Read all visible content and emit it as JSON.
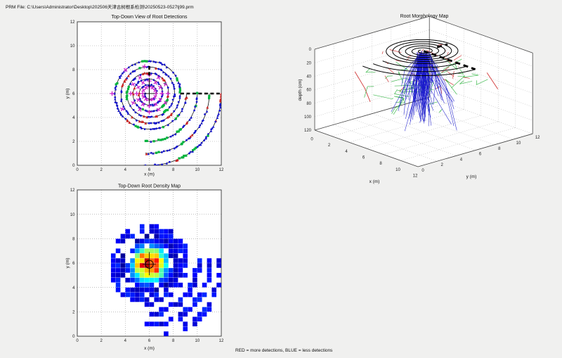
{
  "window": {
    "background": "#f0f0ef"
  },
  "header": {
    "prm_file_label": "PRM File: C:\\Users\\Administrator\\Desktop\\202506天津古树根系检测\\20250523-0527tj99.prm"
  },
  "footer": {
    "legend": "RED = more detections, BLUE = less detections"
  },
  "colors": {
    "marker_blue": "#1414cc",
    "marker_green": "#00b33c",
    "marker_red": "#cc2222",
    "marker_magenta": "#cc22cc",
    "root_blue": "#1a1acc",
    "root_green": "#2ab23c",
    "root_red": "#cc2222",
    "axis": "#333333",
    "grid": "#9a9a9a"
  },
  "chart_data": [
    {
      "id": "topdown_detections",
      "type": "scatter",
      "title": "Top-Down View of Root Detections",
      "xlabel": "x (m)",
      "ylabel": "y (m)",
      "xlim": [
        0,
        12
      ],
      "ylim": [
        0,
        12
      ],
      "xticks": [
        0,
        2,
        4,
        6,
        8,
        10,
        12
      ],
      "yticks": [
        0,
        2,
        4,
        6,
        8,
        10,
        12
      ],
      "grid": "dotted",
      "center": [
        6,
        6
      ],
      "spiral": {
        "r_start": 0.35,
        "r_per_turn": 0.5,
        "turns": 5.5,
        "start_angle_deg": 180
      },
      "outer_arcs": {
        "radii": [
          4,
          5,
          6
        ],
        "angle_start_deg": 0,
        "angle_end_deg": -95
      },
      "marker_spacing_m": 0.13,
      "marker_weights": {
        "blue": 0.62,
        "green": 0.18,
        "red": 0.2
      },
      "magenta_spokes": {
        "angles_deg": [
          0,
          30,
          60,
          90,
          120,
          150,
          180,
          210,
          240,
          270,
          300,
          330
        ],
        "radii": [
          0.55,
          1.05,
          1.55
        ]
      },
      "magenta_outer": [
        [
          135,
          2.8
        ],
        [
          180,
          3.1
        ],
        [
          210,
          2.6
        ],
        [
          100,
          2.3
        ]
      ],
      "dashes": {
        "vertical": {
          "x": 6,
          "y1": 7.5,
          "y2": 8.5
        },
        "horizontal": {
          "y": 6,
          "x1": 8.6,
          "x2": 12
        }
      },
      "seed": 7
    },
    {
      "id": "root_morphology",
      "type": "line3d",
      "title": "Root Morphology Map",
      "xlabel": "x (m)",
      "ylabel": "y (m)",
      "zlabel": "depth (cm)",
      "xlim": [
        0,
        12
      ],
      "ylim": [
        0,
        12
      ],
      "depth_lim": [
        0,
        120
      ],
      "xticks": [
        0,
        2,
        4,
        6,
        8,
        10,
        12
      ],
      "yticks": [
        0,
        2,
        4,
        6,
        8,
        10,
        12
      ],
      "depth_ticks": [
        0,
        20,
        40,
        60,
        80,
        100,
        120
      ],
      "surface_pattern": {
        "center": [
          6,
          6
        ],
        "spiral": {
          "r_start": 0.35,
          "r_per_turn": 0.5,
          "turns": 5.5,
          "start_angle_deg": 180
        },
        "outer_arcs": {
          "radii": [
            4,
            5,
            6
          ],
          "angle_start_deg": 0,
          "angle_end_deg": -95
        },
        "bold_dash_east": {
          "from": [
            6,
            6
          ],
          "to": [
            12,
            6
          ]
        },
        "bold_dash_north": {
          "from": [
            6,
            7.4
          ],
          "to": [
            6,
            8.5
          ]
        }
      },
      "roots": {
        "blue_count": 120,
        "green_count": 34,
        "red_count": 42,
        "blue_depth_range": [
          30,
          115
        ],
        "green_depth_range": [
          25,
          72
        ],
        "red_depth_range": [
          4,
          45
        ],
        "spread_m": 3.2
      },
      "seed": 13
    },
    {
      "id": "root_density",
      "type": "heatmap",
      "title": "Top-Down Root Density Map",
      "xlabel": "x (m)",
      "ylabel": "y (m)",
      "xlim": [
        0,
        12
      ],
      "ylim": [
        0,
        12
      ],
      "xticks": [
        0,
        2,
        4,
        6,
        8,
        10,
        12
      ],
      "yticks": [
        0,
        2,
        4,
        6,
        8,
        10,
        12
      ],
      "cell_m": 0.4,
      "hotspot": {
        "center": [
          6,
          5.9
        ],
        "sigma_m": 1.35,
        "peak": 0.95
      },
      "rings": [
        0.6,
        1.1,
        1.6,
        2.1,
        2.6,
        3.1
      ],
      "outer_arcs": {
        "radii": [
          4,
          5,
          6
        ],
        "angle_start_deg": 5,
        "angle_end_deg": -95
      },
      "colormap": "jet",
      "center_marker": {
        "pos": [
          6,
          5.9
        ],
        "radius_m": 0.33
      },
      "seed": 5
    }
  ]
}
